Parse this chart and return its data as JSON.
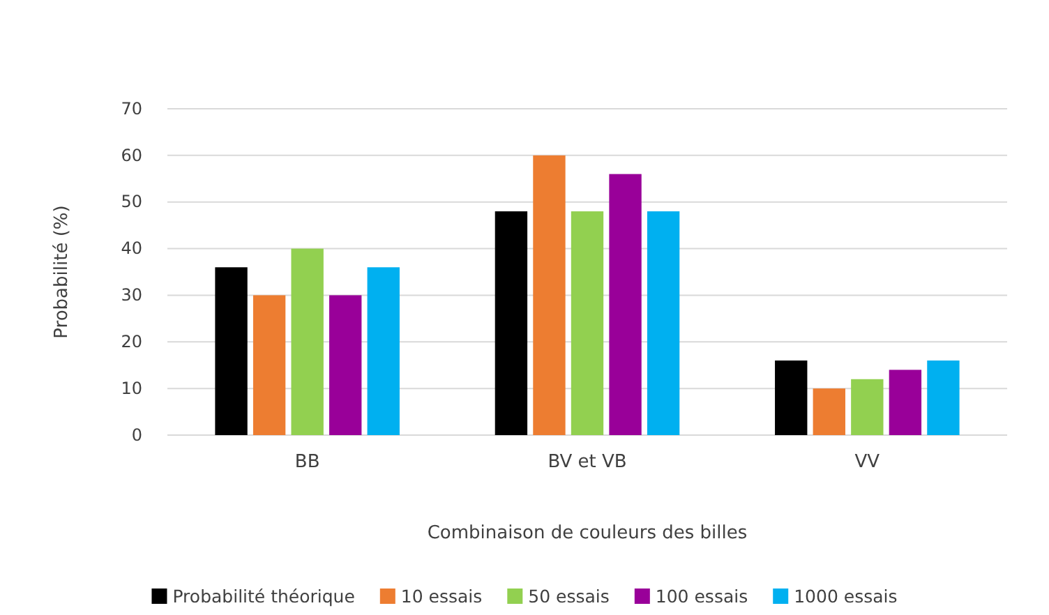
{
  "chart_data": {
    "type": "bar",
    "xlabel": "Combinaison de couleurs des billes",
    "ylabel": "Probabilité (%)",
    "categories": [
      "BB",
      "BV et VB",
      "VV"
    ],
    "series": [
      {
        "name": "Probabilité théorique",
        "color": "#000000",
        "values": [
          36,
          48,
          16
        ]
      },
      {
        "name": "10 essais",
        "color": "#ed7d31",
        "values": [
          30,
          60,
          10
        ]
      },
      {
        "name": "50 essais",
        "color": "#92d050",
        "values": [
          40,
          48,
          12
        ]
      },
      {
        "name": "100 essais",
        "color": "#990099",
        "values": [
          30,
          56,
          14
        ]
      },
      {
        "name": "1000 essais",
        "color": "#00b0f0",
        "values": [
          36,
          48,
          16
        ]
      }
    ],
    "ylim": [
      0,
      70
    ],
    "yticks": [
      0,
      10,
      20,
      30,
      40,
      50,
      60,
      70
    ],
    "grid": "y",
    "legend": "bottom"
  }
}
